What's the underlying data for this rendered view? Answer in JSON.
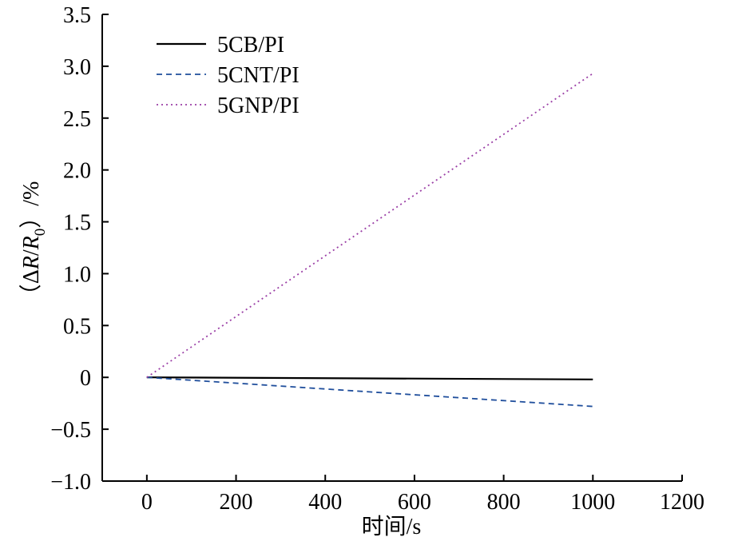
{
  "chart_data": {
    "type": "line",
    "title": "",
    "xlabel": "时间/s",
    "ylabel": {
      "open": "（",
      "delta": "Δ",
      "r": "R",
      "slash": "/",
      "r0": "R",
      "sub": "0",
      "close": "）/%"
    },
    "xlim": [
      -100,
      1200
    ],
    "ylim": [
      -1.0,
      3.5
    ],
    "xticks": [
      0,
      200,
      400,
      600,
      800,
      1000,
      1200
    ],
    "xtick_labels": [
      "0",
      "200",
      "400",
      "600",
      "800",
      "1000",
      "1200"
    ],
    "yticks": [
      -1.0,
      -0.5,
      0,
      0.5,
      1.0,
      1.5,
      2.0,
      2.5,
      3.0,
      3.5
    ],
    "ytick_labels": [
      "−1.0",
      "−0.5",
      "0",
      "0.5",
      "1.0",
      "1.5",
      "2.0",
      "2.5",
      "3.0",
      "3.5"
    ],
    "grid": false,
    "legend_position": "top-left",
    "series": [
      {
        "name": "5CB/PI",
        "color": "#000000",
        "dash": "solid",
        "x": [
          0,
          1000
        ],
        "y": [
          0,
          -0.02
        ]
      },
      {
        "name": "5CNT/PI",
        "color": "#1f4e9c",
        "dash": "dashed",
        "x": [
          0,
          1000
        ],
        "y": [
          0,
          -0.28
        ]
      },
      {
        "name": "5GNP/PI",
        "color": "#9b3fa6",
        "dash": "dotted",
        "x": [
          0,
          1000
        ],
        "y": [
          0,
          2.93
        ]
      }
    ]
  }
}
